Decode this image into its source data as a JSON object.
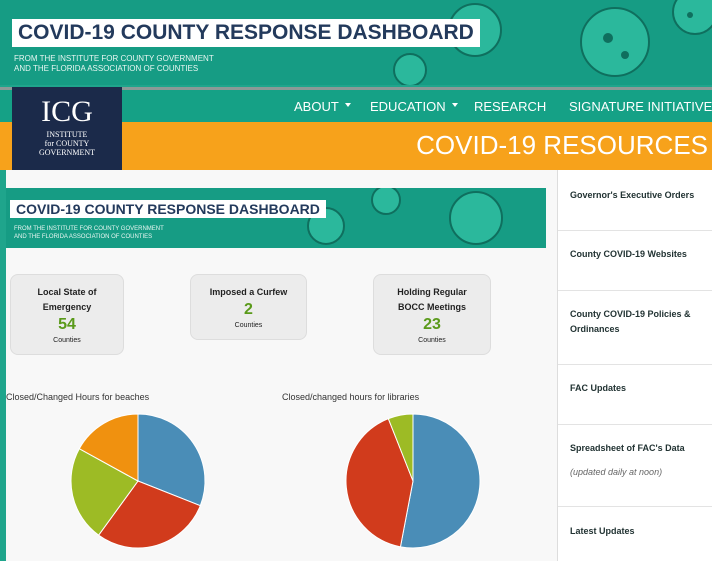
{
  "header": {
    "title": "COVID-19 COUNTY RESPONSE DASHBOARD",
    "subtitle_lines": [
      "FROM THE INSTITUTE FOR COUNTY GOVERNMENT",
      "AND THE FLORIDA ASSOCIATION OF COUNTIES"
    ]
  },
  "logo": {
    "abbr": "ICG",
    "lines": [
      "INSTITUTE",
      "for COUNTY",
      "GOVERNMENT"
    ]
  },
  "nav": [
    "ABOUT",
    "EDUCATION",
    "RESEARCH",
    "SIGNATURE INITIATIVES"
  ],
  "page_title": "COVID-19 RESOURCES",
  "banner": {
    "title": "COVID-19 COUNTY RESPONSE DASHBOARD",
    "subtitle_lines": [
      "FROM THE INSTITUTE FOR COUNTY GOVERNMENT",
      "AND THE FLORIDA ASSOCIATION OF COUNTIES"
    ]
  },
  "stats": [
    {
      "label": "Local State of Emergency",
      "value": 54,
      "unit": "Counties"
    },
    {
      "label": "Imposed a Curfew",
      "value": 2,
      "unit": "Counties"
    },
    {
      "label": "Holding Regular BOCC Meetings",
      "value": 23,
      "unit": "Counties"
    }
  ],
  "chart_data": [
    {
      "type": "pie",
      "title": "Closed/Changed Hours for beaches",
      "values": [
        31,
        29,
        23,
        17
      ],
      "colors": [
        "#4a8db7",
        "#d13b1c",
        "#9dbb25",
        "#f0910f"
      ]
    },
    {
      "type": "pie",
      "title": "Closed/changed hours for libraries",
      "values": [
        53,
        41,
        6
      ],
      "colors": [
        "#4a8db7",
        "#d13b1c",
        "#9dbb25"
      ]
    }
  ],
  "sidebar": [
    {
      "label": "Governor's Executive Orders"
    },
    {
      "label": "County COVID-19 Websites"
    },
    {
      "label": "County COVID-19 Policies & Ordinances"
    },
    {
      "label": "FAC Updates"
    },
    {
      "label": "Spreadsheet of FAC's Data",
      "note": "(updated daily at noon)"
    },
    {
      "label": "Latest Updates"
    }
  ]
}
